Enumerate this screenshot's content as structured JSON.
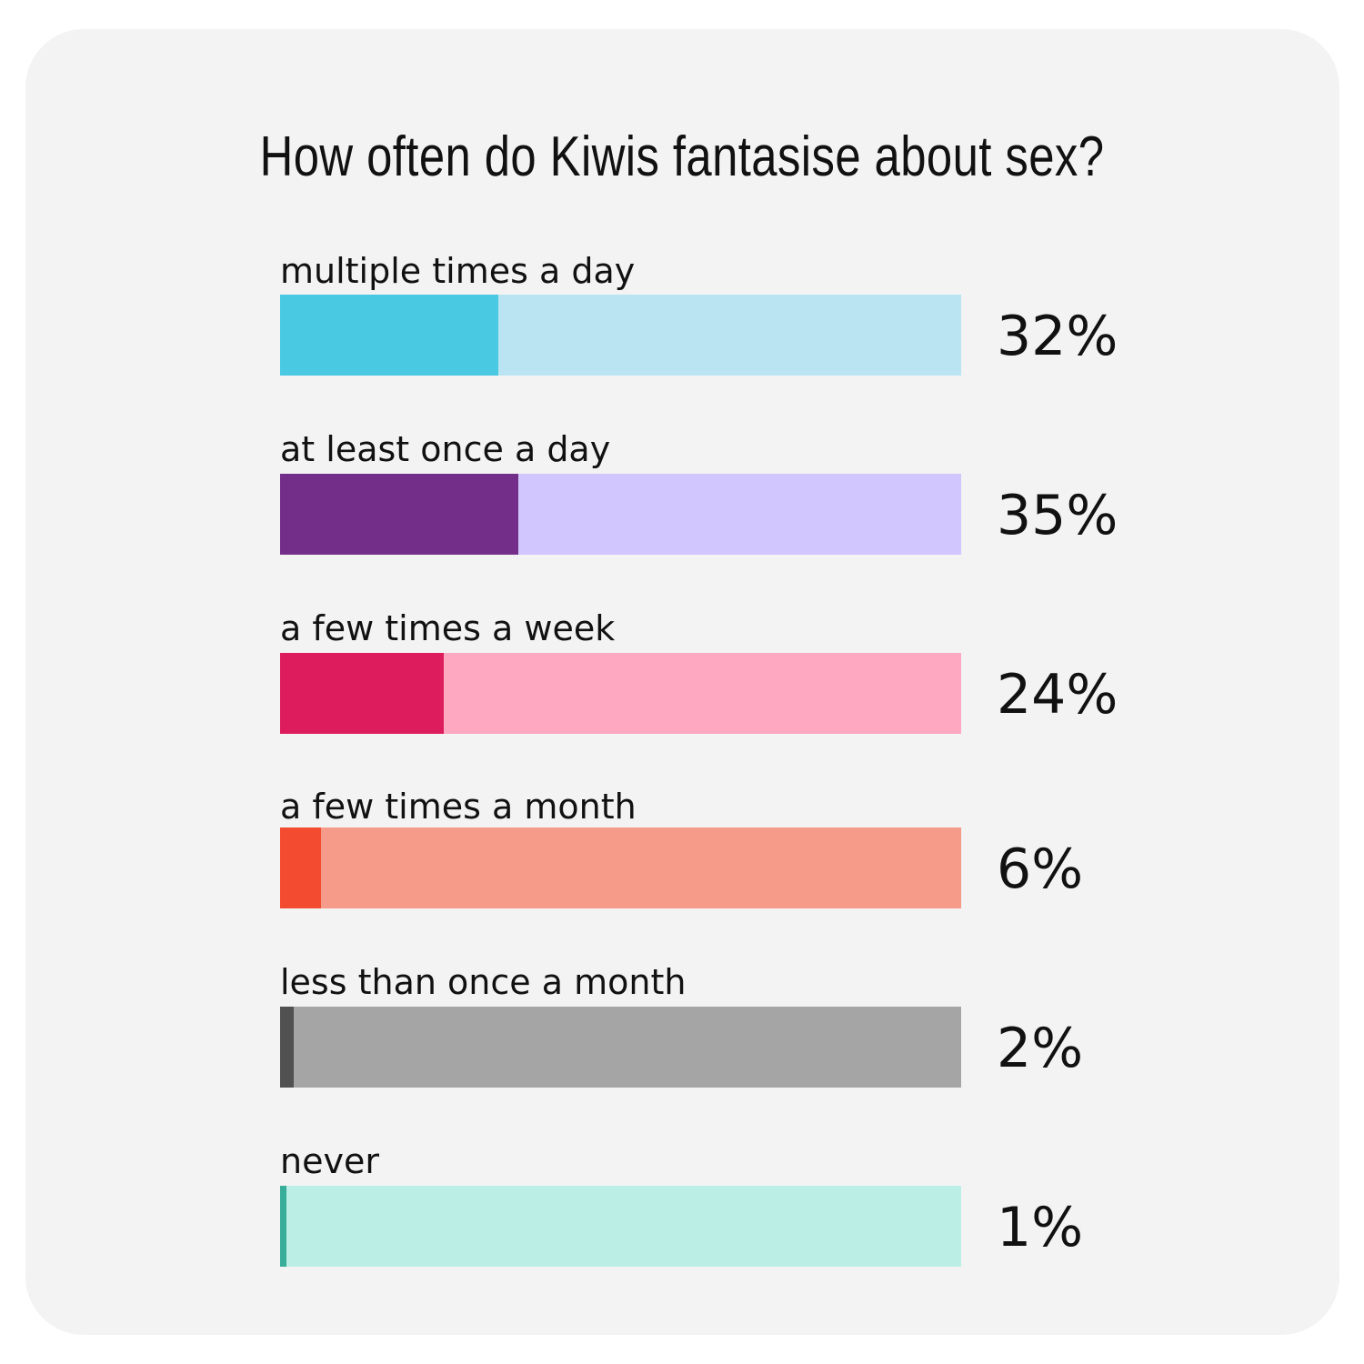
{
  "chart_data": {
    "type": "bar",
    "title": "How often do Kiwis fantasise about sex?",
    "orientation": "horizontal",
    "xlim": [
      0,
      100
    ],
    "categories": [
      "multiple times a day",
      "at least once a day",
      "a few times a week",
      "a few times a month",
      "less than once a month",
      "never"
    ],
    "values": [
      32,
      35,
      24,
      6,
      2,
      1
    ],
    "value_labels": [
      "32%",
      "35%",
      "24%",
      "6%",
      "2%",
      "1%"
    ],
    "colors": {
      "fill": [
        "#4ac9e2",
        "#722e88",
        "#dc1c5c",
        "#f34b30",
        "#515151",
        "#37ad9a"
      ],
      "track": [
        "#bae4f1",
        "#d1c6fe",
        "#ffa8c2",
        "#f69a8a",
        "#a5a5a5",
        "#bbefe5"
      ]
    }
  }
}
